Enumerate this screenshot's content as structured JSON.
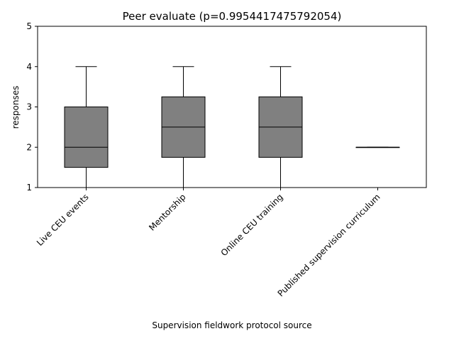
{
  "chart_data": {
    "type": "box",
    "title": "Peer evaluate (p=0.9954417475792054)",
    "xlabel": "Supervision fieldwork protocol source",
    "ylabel": "responses",
    "ylim": [
      1,
      5
    ],
    "yticks": [
      1,
      2,
      3,
      4,
      5
    ],
    "categories": [
      "Live CEU events",
      "Mentorship",
      "Online CEU training",
      "Published supervision curriculum"
    ],
    "boxes": [
      {
        "whisker_low": 1,
        "q1": 1.5,
        "median": 2,
        "q3": 3,
        "whisker_high": 4
      },
      {
        "whisker_low": 1,
        "q1": 1.75,
        "median": 2.5,
        "q3": 3.25,
        "whisker_high": 4
      },
      {
        "whisker_low": 1,
        "q1": 1.75,
        "median": 2.5,
        "q3": 3.25,
        "whisker_high": 4
      },
      {
        "whisker_low": 2,
        "q1": 2,
        "median": 2,
        "q3": 2,
        "whisker_high": 2
      }
    ],
    "box_color": "#808080",
    "line_color": "#000000",
    "grid": false,
    "legend": "none"
  }
}
